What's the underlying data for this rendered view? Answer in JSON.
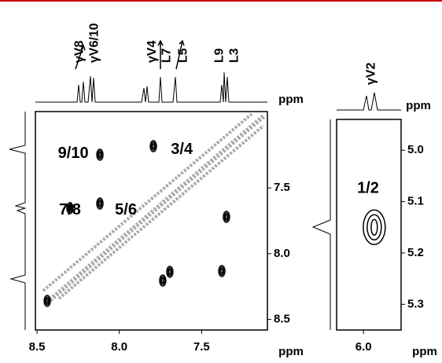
{
  "chart_data": [
    {
      "type": "contour",
      "xlabel": "ppm",
      "trace_unit": "ppm",
      "xlim": [
        8.51,
        7.1
      ],
      "ylim": [
        6.92,
        8.58
      ],
      "xticks": [
        8.5,
        {
          "value": 8,
          "label": "8.0"
        },
        7.5
      ],
      "yticks": [
        7.5,
        {
          "value": 8,
          "label": "8.0"
        },
        8.5
      ],
      "x": [
        8.118,
        7.793,
        8.3,
        8.118,
        7.349,
        7.693,
        7.736,
        7.377,
        8.438
      ],
      "y": [
        7.248,
        7.183,
        7.654,
        7.619,
        7.72,
        8.138,
        8.204,
        8.132,
        8.359
      ],
      "annotations": [
        {
          "text": "9/10",
          "x": 8.28,
          "y": 7.24
        },
        {
          "text": "3/4",
          "x": 7.62,
          "y": 7.21
        },
        {
          "text": "7/8",
          "x": 8.3,
          "y": 7.67
        },
        {
          "text": "5/6",
          "x": 7.96,
          "y": 7.67
        }
      ],
      "peak_labels": [
        {
          "text": "γV8",
          "x": 8.24
        },
        {
          "text": "γV6/10",
          "x": 8.15
        },
        {
          "text": "γV4",
          "x": 7.8
        },
        {
          "text": "L7",
          "x": 7.71
        },
        {
          "text": "L5",
          "x": 7.61
        },
        {
          "text": "L9",
          "x": 7.39
        },
        {
          "text": "L3",
          "x": 7.3
        }
      ]
    },
    {
      "type": "contour",
      "xlabel": "ppm",
      "trace_unit": "ppm",
      "xlim": [
        6.1,
        5.86
      ],
      "ylim": [
        4.94,
        5.35
      ],
      "xticks": [
        {
          "value": 6,
          "label": "6.0"
        }
      ],
      "yticks": [
        {
          "value": 5,
          "label": "5.0"
        },
        5.1,
        5.2,
        5.3
      ],
      "x": [
        5.96
      ],
      "y": [
        5.15
      ],
      "annotations": [
        {
          "text": "1/2",
          "x": 5.983,
          "y": 5.075
        }
      ],
      "peak_labels": [
        {
          "text": "γV2",
          "x": 5.97
        }
      ]
    }
  ]
}
